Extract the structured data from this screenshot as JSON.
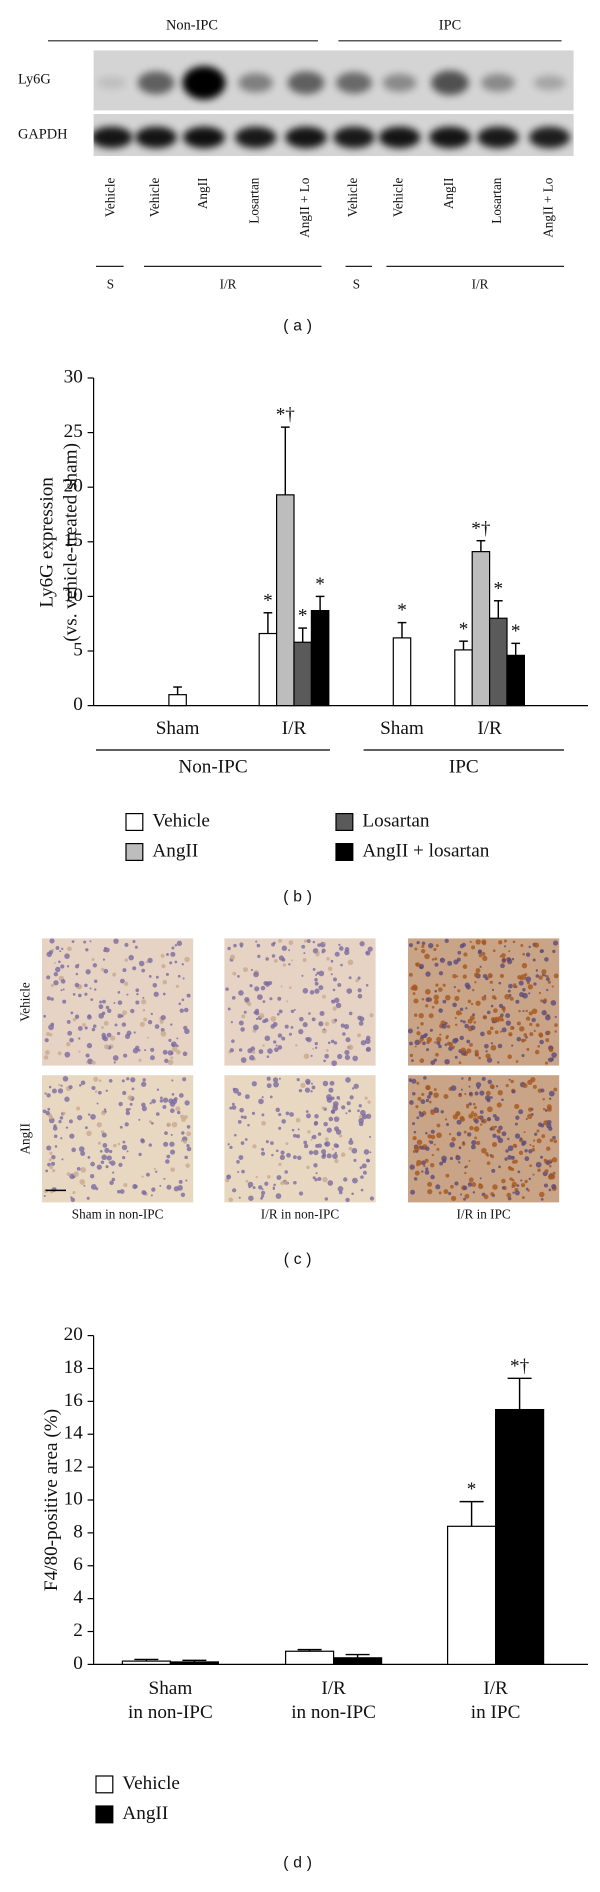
{
  "blot": {
    "groups": [
      "Non-IPC",
      "IPC"
    ],
    "rows": [
      "Ly6G",
      "GAPDH"
    ],
    "lanes": [
      "Vehicle",
      "Vehicle",
      "AngII",
      "Losartan",
      "AngII + Lo",
      "Vehicle",
      "Vehicle",
      "AngII",
      "Losartan",
      "AngII + Lo"
    ],
    "conditions": [
      "S",
      "I/R",
      "S",
      "I/R"
    ],
    "caption": "(a)"
  },
  "chart_data": [
    {
      "type": "bar",
      "caption": "(b)",
      "ylabel": [
        "Ly6G expression",
        "(vs. vehicle-treated sham)"
      ],
      "categories": [
        "Sham",
        "I/R",
        "Sham",
        "I/R"
      ],
      "groups": [
        "Non-IPC",
        "IPC"
      ],
      "ylim": [
        0,
        30
      ],
      "yticks": [
        0,
        5,
        10,
        15,
        20,
        25,
        30
      ],
      "series": [
        {
          "name": "Vehicle",
          "color": "#ffffff",
          "values": [
            1.0,
            6.6,
            6.2,
            5.1
          ],
          "errors": [
            0.7,
            1.9,
            1.4,
            0.8
          ],
          "markers": [
            null,
            "*",
            "*",
            "*"
          ]
        },
        {
          "name": "AngII",
          "color": "#bdbdbd",
          "values": [
            null,
            19.3,
            null,
            14.1
          ],
          "errors": [
            null,
            6.2,
            null,
            1.0
          ],
          "markers": [
            null,
            "*†",
            null,
            "*†"
          ]
        },
        {
          "name": "Losartan",
          "color": "#5a5a5a",
          "values": [
            null,
            5.8,
            null,
            8.0
          ],
          "errors": [
            null,
            1.3,
            null,
            1.6
          ],
          "markers": [
            null,
            "*",
            null,
            "*"
          ]
        },
        {
          "name": "AngII + losartan",
          "color": "#000000",
          "values": [
            null,
            8.7,
            null,
            4.6
          ],
          "errors": [
            null,
            1.3,
            null,
            1.1
          ],
          "markers": [
            null,
            "*",
            null,
            "*"
          ]
        }
      ]
    },
    {
      "type": "bar",
      "caption": "(d)",
      "ylabel": [
        "F4/80-positive area (%)"
      ],
      "categories": [
        [
          "Sham",
          "in non-IPC"
        ],
        [
          "I/R",
          "in non-IPC"
        ],
        [
          "I/R",
          "in IPC"
        ]
      ],
      "ylim": [
        0,
        20
      ],
      "yticks": [
        0,
        2,
        4,
        6,
        8,
        10,
        12,
        14,
        16,
        18,
        20
      ],
      "series": [
        {
          "name": "Vehicle",
          "color": "#ffffff",
          "values": [
            0.2,
            0.8,
            8.4
          ],
          "errors": [
            0.1,
            0.1,
            1.5
          ],
          "markers": [
            null,
            null,
            "*"
          ]
        },
        {
          "name": "AngII",
          "color": "#000000",
          "values": [
            0.15,
            0.4,
            15.5
          ],
          "errors": [
            0.1,
            0.2,
            1.9
          ],
          "markers": [
            null,
            null,
            "*†"
          ]
        }
      ]
    }
  ],
  "micrographs": {
    "rows": [
      "Vehicle",
      "AngII"
    ],
    "columns": [
      "Sham in non-IPC",
      "I/R in non-IPC",
      "I/R in IPC"
    ],
    "caption": "(c)"
  }
}
